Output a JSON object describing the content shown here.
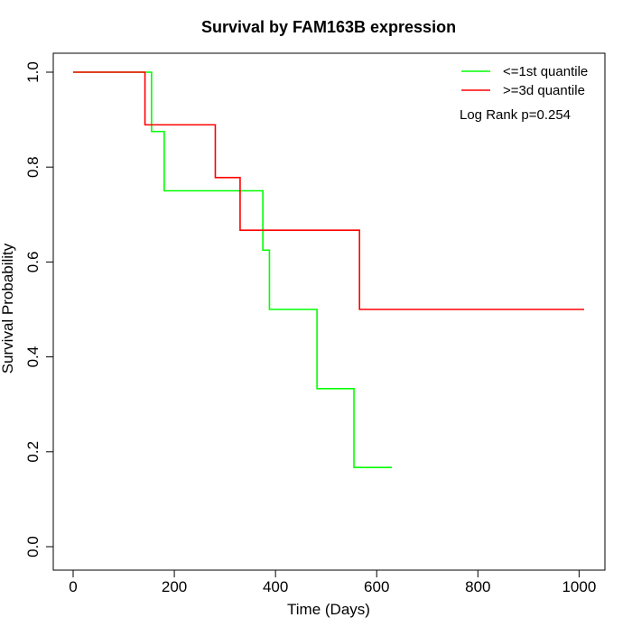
{
  "chart_data": {
    "type": "line",
    "title": "Survival by FAM163B expression",
    "xlabel": "Time (Days)",
    "ylabel": "Survival Probability",
    "xlim": [
      0,
      1010
    ],
    "ylim": [
      0,
      1
    ],
    "xticks": [
      0,
      200,
      400,
      600,
      800,
      1000
    ],
    "yticks": [
      0,
      0.2,
      0.4,
      0.6,
      0.8,
      1
    ],
    "ytick_labels": [
      "0.0",
      "0.2",
      "0.4",
      "0.6",
      "0.8",
      "1.0"
    ],
    "grid": false,
    "legend_position": "top-right",
    "annotation": "Log Rank p=0.254",
    "series": [
      {
        "name": "<=1st quantile",
        "color": "#00ff00",
        "step": true,
        "x": [
          0,
          155,
          180,
          375,
          388,
          482,
          555,
          630
        ],
        "y": [
          1.0,
          0.875,
          0.75,
          0.625,
          0.5,
          0.333,
          0.167,
          0.167
        ]
      },
      {
        "name": ">=3d quantile",
        "color": "#ff0000",
        "step": true,
        "x": [
          0,
          142,
          281,
          330,
          566,
          1010
        ],
        "y": [
          1.0,
          0.889,
          0.778,
          0.667,
          0.5,
          0.5
        ]
      }
    ]
  }
}
